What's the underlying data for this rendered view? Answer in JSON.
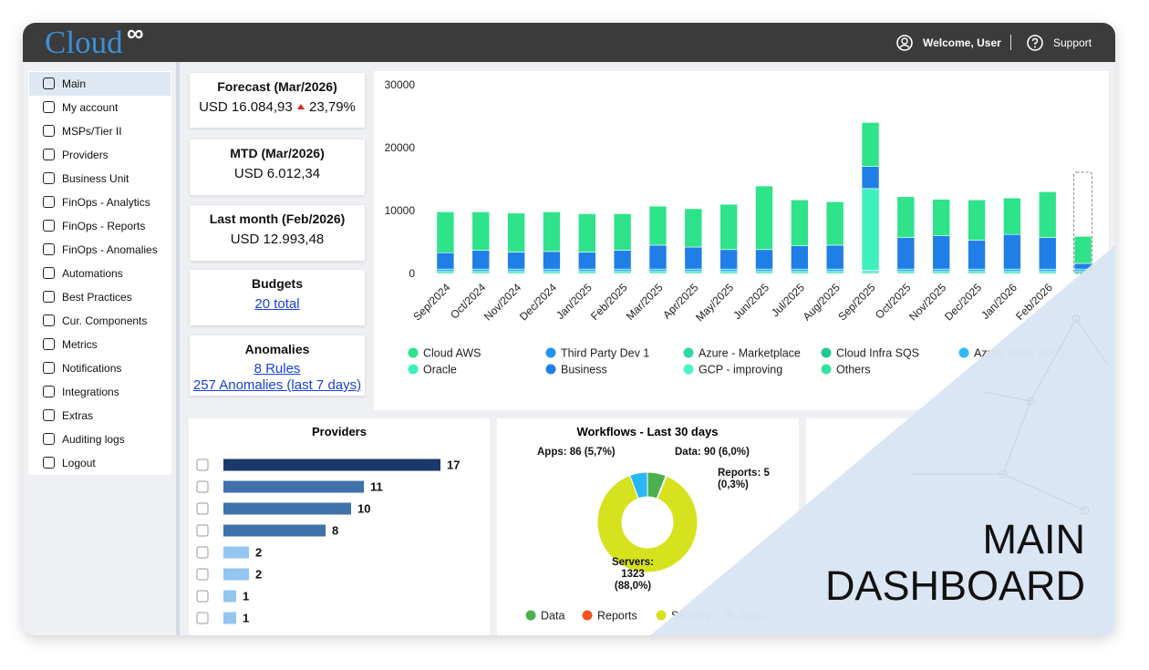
{
  "header": {
    "logo": "Cloud",
    "logo_mark": "∞",
    "welcome": "Welcome, User",
    "support": "Support"
  },
  "sidebar": {
    "items": [
      "Main",
      "My account",
      "MSPs/Tier II",
      "Providers",
      "Business Unit",
      "FinOps - Analytics",
      "FinOps - Reports",
      "FinOps - Anomalies",
      "Automations",
      "Best Practices",
      "Cur. Components",
      "Metrics",
      "Notifications",
      "Integrations",
      "Extras",
      "Auditing logs",
      "Logout"
    ]
  },
  "cards": [
    {
      "title": "Forecast (Mar/2026)",
      "value": "USD 16.084,93",
      "change": "23,79%"
    },
    {
      "title": "MTD (Mar/2026)",
      "value": "USD 6.012,34"
    },
    {
      "title": "Last month (Feb/2026)",
      "value": "USD 12.993,48"
    },
    {
      "title": "Budgets",
      "links": [
        "20 total"
      ]
    },
    {
      "title": "Anomalies",
      "links": [
        "8 Rules",
        "257 Anomalies (last 7 days)"
      ]
    }
  ],
  "overlay": {
    "title": "MAIN DASHBOARD"
  },
  "chart_data": [
    {
      "type": "stacked_bar",
      "categories": [
        "Sep/2024",
        "Oct/2024",
        "Nov/2024",
        "Dec/2024",
        "Jan/2025",
        "Feb/2025",
        "Mar/2025",
        "Apr/2025",
        "May/2025",
        "Jun/2025",
        "Jul/2025",
        "Aug/2025",
        "Sep/2025",
        "Oct/2025",
        "Nov/2025",
        "Dec/2025",
        "Jan/2026",
        "Feb/2026",
        null
      ],
      "series": [
        {
          "name": "Cloud AWS",
          "color": "#2ee38a",
          "values": [
            6500,
            6100,
            6200,
            6300,
            6100,
            5800,
            6200,
            6100,
            7200,
            10100,
            7300,
            6900,
            7000,
            6500,
            5800,
            6400,
            5800,
            7300,
            4300
          ]
        },
        {
          "name": "Third Party Dev 1",
          "color": "#1e96f0",
          "values": [
            0,
            0,
            0,
            0,
            0,
            0,
            0,
            0,
            0,
            0,
            0,
            0,
            0,
            0,
            0,
            0,
            0,
            0,
            0
          ]
        },
        {
          "name": "Azure - Marketplace",
          "color": "#2fd6a8",
          "values": [
            0,
            0,
            0,
            0,
            0,
            0,
            0,
            0,
            0,
            0,
            0,
            0,
            0,
            0,
            0,
            0,
            0,
            0,
            0
          ]
        },
        {
          "name": "Cloud Infra SQS",
          "color": "#22c98c",
          "values": [
            0,
            0,
            0,
            0,
            0,
            0,
            0,
            0,
            0,
            0,
            0,
            0,
            0,
            0,
            0,
            0,
            0,
            0,
            0
          ]
        },
        {
          "name": "Azure Teste Tier II",
          "color": "#2bbcf5",
          "values": [
            400,
            400,
            400,
            400,
            400,
            400,
            400,
            400,
            400,
            400,
            400,
            400,
            200,
            400,
            400,
            400,
            400,
            400,
            400
          ]
        },
        {
          "name": "Oracle",
          "color": "#3ef0bb",
          "values": [
            0,
            0,
            0,
            0,
            0,
            0,
            0,
            0,
            0,
            0,
            0,
            0,
            13000,
            0,
            0,
            0,
            0,
            0,
            0
          ]
        },
        {
          "name": "Business",
          "color": "#1f7fe6",
          "values": [
            2600,
            3000,
            2700,
            2800,
            2700,
            3000,
            3800,
            3500,
            3100,
            3100,
            3700,
            3800,
            3500,
            5000,
            5300,
            4600,
            5500,
            5000,
            900
          ]
        },
        {
          "name": "GCP - improving",
          "color": "#48f5c8",
          "values": [
            0,
            0,
            0,
            0,
            0,
            0,
            0,
            0,
            0,
            0,
            0,
            0,
            0,
            0,
            0,
            0,
            0,
            0,
            0
          ]
        },
        {
          "name": "Others",
          "color": "#34e39f",
          "values": [
            300,
            300,
            300,
            300,
            300,
            300,
            300,
            300,
            300,
            300,
            300,
            300,
            300,
            300,
            300,
            300,
            300,
            300,
            300
          ]
        }
      ],
      "forecast": 16085,
      "ylim": [
        0,
        30000
      ],
      "yticks": [
        0,
        10000,
        20000,
        30000
      ],
      "grid": false,
      "legend": "bottom"
    },
    {
      "type": "hbar",
      "title": "Providers",
      "values": [
        17,
        11,
        10,
        8,
        2,
        2,
        1,
        1
      ],
      "colors": [
        "#1b3a6b",
        "#3f72aa",
        "#3f72aa",
        "#3f72aa",
        "#93c5f1",
        "#93c5f1",
        "#93c5f1",
        "#93c5f1"
      ],
      "xlim": [
        0,
        20
      ]
    },
    {
      "type": "donut",
      "title": "Workflows - Last 30 days",
      "categories": [
        "Data",
        "Reports",
        "Servers",
        "Apps"
      ],
      "values": [
        90,
        5,
        1323,
        86
      ],
      "value_labels": [
        "Data: 90 (6,0%)",
        "Reports: 5 (0,3%)",
        "Servers: 1323 (88,0%)",
        "Apps: 86 (5,7%)"
      ],
      "colors": [
        "#4caf50",
        "#f4511e",
        "#d6e21e",
        "#29b6f6"
      ]
    }
  ]
}
